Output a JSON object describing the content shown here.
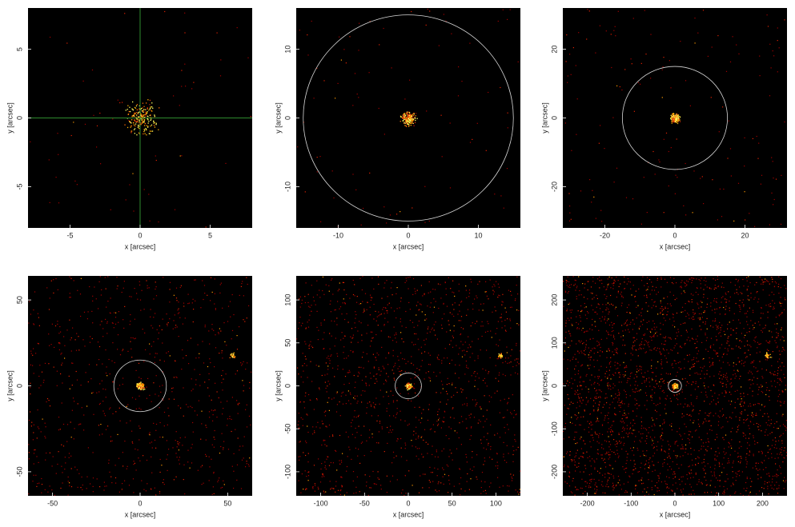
{
  "chart_data": [
    {
      "type": "image",
      "xlabel": "x [arcsec]",
      "ylabel": "y [arcsec]",
      "xlim": [
        -8,
        8
      ],
      "ylim": [
        -8,
        8
      ],
      "xticks": [
        -5,
        0,
        5
      ],
      "yticks": [
        -5,
        0,
        5
      ],
      "crosshair": true,
      "crosshair_color": "#2e8b2e"
    },
    {
      "type": "image",
      "xlabel": "x [arcsec]",
      "ylabel": "y [arcsec]",
      "xlim": [
        -16,
        16
      ],
      "ylim": [
        -16,
        16
      ],
      "xticks": [
        -10,
        0,
        10
      ],
      "yticks": [
        -10,
        0,
        10
      ],
      "circle_radius": 15,
      "circle_color": "#d8d8d8"
    },
    {
      "type": "image",
      "xlabel": "x [arcsec]",
      "ylabel": "y [arcsec]",
      "xlim": [
        -32,
        32
      ],
      "ylim": [
        -32,
        32
      ],
      "xticks": [
        -20,
        0,
        20
      ],
      "yticks": [
        -20,
        0,
        20
      ],
      "circle_radius": 15,
      "circle_color": "#d8d8d8"
    },
    {
      "type": "image",
      "xlabel": "x [arcsec]",
      "ylabel": "y [arcsec]",
      "xlim": [
        -64,
        64
      ],
      "ylim": [
        -64,
        64
      ],
      "xticks": [
        -50,
        0,
        50
      ],
      "yticks": [
        -50,
        0,
        50
      ],
      "circle_radius": 15,
      "circle_color": "#d8d8d8"
    },
    {
      "type": "image",
      "xlabel": "x [arcsec]",
      "ylabel": "y [arcsec]",
      "xlim": [
        -128,
        128
      ],
      "ylim": [
        -128,
        128
      ],
      "xticks": [
        -100,
        -50,
        0,
        50,
        100
      ],
      "yticks": [
        -100,
        -50,
        0,
        50,
        100
      ],
      "circle_radius": 15,
      "circle_color": "#d8d8d8"
    },
    {
      "type": "image",
      "xlabel": "x [arcsec]",
      "ylabel": "y [arcsec]",
      "xlim": [
        -256,
        256
      ],
      "ylim": [
        -256,
        256
      ],
      "xticks": [
        -200,
        -100,
        0,
        100,
        200
      ],
      "yticks": [
        -200,
        -100,
        0,
        100,
        200
      ],
      "circle_radius": 15,
      "circle_color": "#d8d8d8"
    }
  ]
}
